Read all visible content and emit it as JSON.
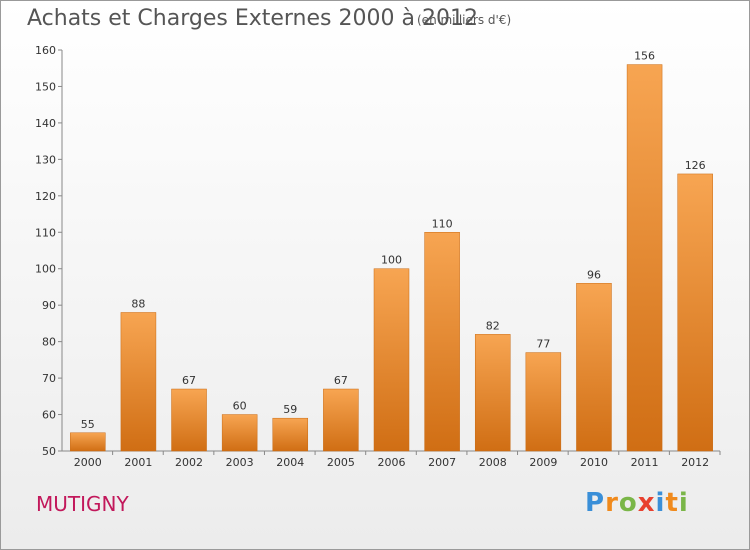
{
  "header": {
    "title": "Achats et Charges Externes 2000 à 2012",
    "subtitle": "(en milliers d'€)"
  },
  "footer": {
    "city": "MUTIGNY",
    "logo_letters": [
      {
        "ch": "P",
        "color": "#3a8fd8"
      },
      {
        "ch": "r",
        "color": "#f08a1c"
      },
      {
        "ch": "o",
        "color": "#7ab648"
      },
      {
        "ch": "x",
        "color": "#e8412f"
      },
      {
        "ch": "i",
        "color": "#3a8fd8"
      },
      {
        "ch": "t",
        "color": "#f08a1c"
      },
      {
        "ch": "i",
        "color": "#7ab648"
      }
    ]
  },
  "chart_data": {
    "type": "bar",
    "categories": [
      "2000",
      "2001",
      "2002",
      "2003",
      "2004",
      "2005",
      "2006",
      "2007",
      "2008",
      "2009",
      "2010",
      "2011",
      "2012"
    ],
    "values": [
      55,
      88,
      67,
      60,
      59,
      67,
      100,
      110,
      82,
      77,
      96,
      156,
      126
    ],
    "title": "Achats et Charges Externes 2000 à 2012",
    "subtitle": "(en milliers d'€)",
    "xlabel": "",
    "ylabel": "",
    "ylim": [
      50,
      160
    ],
    "yticks": [
      50,
      60,
      70,
      80,
      90,
      100,
      110,
      120,
      130,
      140,
      150,
      160
    ],
    "grid": false,
    "bar_color": "#f08a2a"
  }
}
